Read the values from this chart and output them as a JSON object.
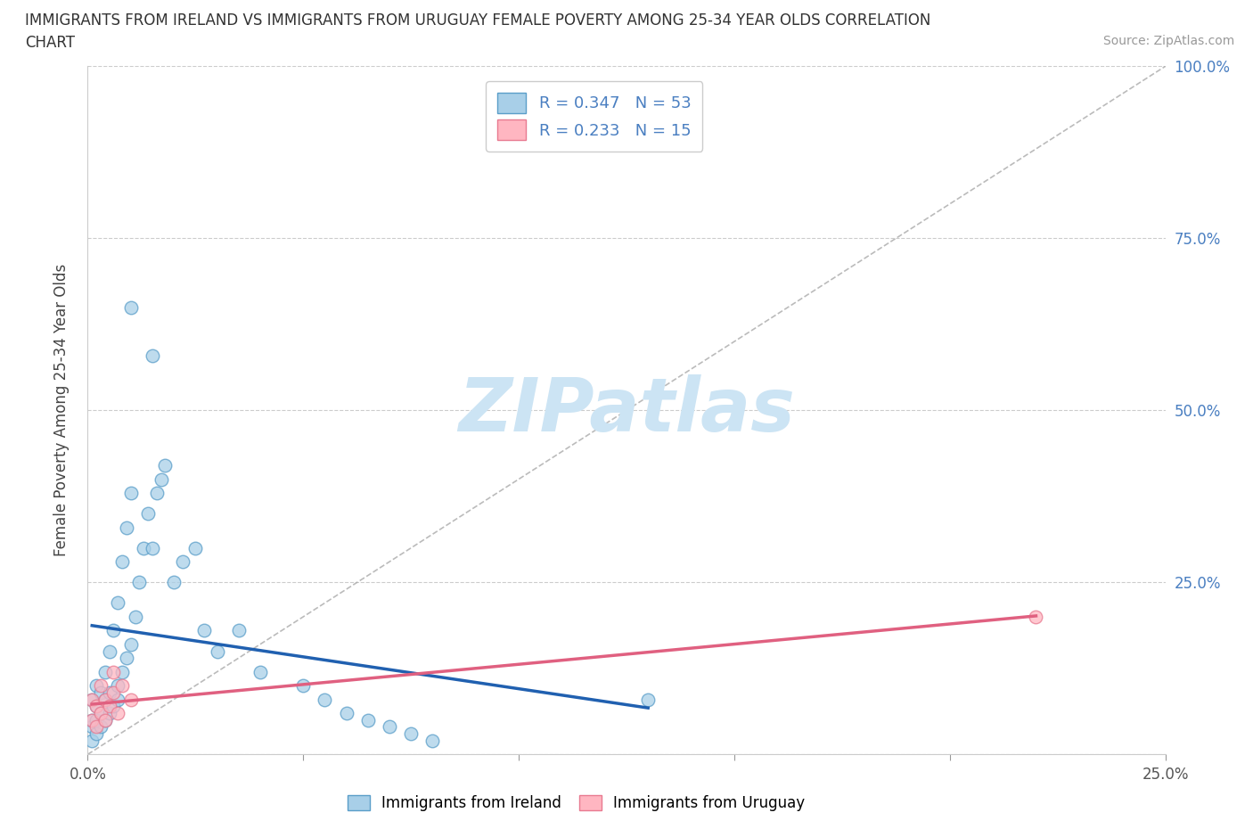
{
  "title_line1": "IMMIGRANTS FROM IRELAND VS IMMIGRANTS FROM URUGUAY FEMALE POVERTY AMONG 25-34 YEAR OLDS CORRELATION",
  "title_line2": "CHART",
  "source": "Source: ZipAtlas.com",
  "ylabel": "Female Poverty Among 25-34 Year Olds",
  "xlim": [
    0.0,
    0.25
  ],
  "ylim": [
    0.0,
    1.0
  ],
  "ireland_color": "#a8cfe8",
  "ireland_edge": "#5a9ec9",
  "uruguay_color": "#ffb6c1",
  "uruguay_edge": "#e87a90",
  "ireland_trend_color": "#2060b0",
  "uruguay_trend_color": "#e06080",
  "diag_color": "#aaaaaa",
  "grid_color": "#cccccc",
  "ytick_color": "#4a7fc1",
  "xtick_color": "#555555",
  "watermark_color": "#cce4f4",
  "background_color": "#ffffff",
  "ireland_R": 0.347,
  "ireland_N": 53,
  "uruguay_R": 0.233,
  "uruguay_N": 15,
  "ireland_x": [
    0.001,
    0.001,
    0.001,
    0.001,
    0.002,
    0.002,
    0.002,
    0.002,
    0.003,
    0.003,
    0.003,
    0.004,
    0.004,
    0.004,
    0.005,
    0.005,
    0.005,
    0.006,
    0.006,
    0.007,
    0.007,
    0.007,
    0.008,
    0.008,
    0.009,
    0.009,
    0.01,
    0.01,
    0.011,
    0.012,
    0.013,
    0.014,
    0.015,
    0.016,
    0.017,
    0.018,
    0.02,
    0.022,
    0.025,
    0.027,
    0.03,
    0.035,
    0.04,
    0.05,
    0.055,
    0.06,
    0.065,
    0.07,
    0.075,
    0.08,
    0.01,
    0.015,
    0.13
  ],
  "ireland_y": [
    0.02,
    0.04,
    0.05,
    0.08,
    0.03,
    0.05,
    0.07,
    0.1,
    0.04,
    0.06,
    0.09,
    0.05,
    0.08,
    0.12,
    0.06,
    0.09,
    0.15,
    0.07,
    0.18,
    0.08,
    0.1,
    0.22,
    0.12,
    0.28,
    0.14,
    0.33,
    0.16,
    0.38,
    0.2,
    0.25,
    0.3,
    0.35,
    0.3,
    0.38,
    0.4,
    0.42,
    0.25,
    0.28,
    0.3,
    0.18,
    0.15,
    0.18,
    0.12,
    0.1,
    0.08,
    0.06,
    0.05,
    0.04,
    0.03,
    0.02,
    0.65,
    0.58,
    0.08
  ],
  "uruguay_x": [
    0.001,
    0.001,
    0.002,
    0.002,
    0.003,
    0.003,
    0.004,
    0.004,
    0.005,
    0.006,
    0.006,
    0.007,
    0.008,
    0.01,
    0.22
  ],
  "uruguay_y": [
    0.05,
    0.08,
    0.04,
    0.07,
    0.06,
    0.1,
    0.05,
    0.08,
    0.07,
    0.09,
    0.12,
    0.06,
    0.1,
    0.08,
    0.2
  ]
}
